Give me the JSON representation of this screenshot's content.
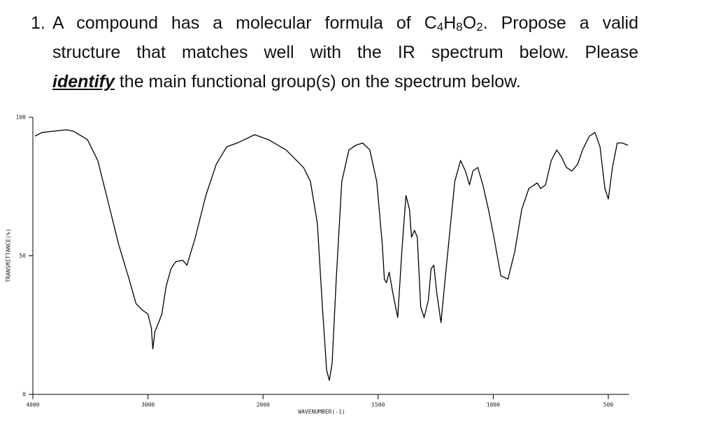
{
  "question": {
    "number": "1.",
    "text_before": "A compound has a molecular formula of",
    "formula": [
      {
        "symbol": "C",
        "count": 4
      },
      {
        "symbol": "H",
        "count": 8
      },
      {
        "symbol": "O",
        "count": 2
      }
    ],
    "text_after": ". Propose a valid",
    "line_2": "structure that matches well with the IR spectrum below. Please",
    "emphasis": "identify",
    "line_3_rest": "the main functional group(s) on the spectrum below."
  },
  "chart_data": {
    "type": "line",
    "x_label": "WAVENUMBER(-1)",
    "y_label": "TRANSMITTANCE(%)",
    "xlim": [
      4000,
      410
    ],
    "xticks": [
      4000,
      3000,
      2000,
      1500,
      1000,
      500
    ],
    "ylim": [
      0,
      100
    ],
    "yticks": [
      0,
      50,
      100
    ],
    "grid": false,
    "series": [
      {
        "color": "#000000",
        "x": [
          3982,
          3921,
          3709,
          3648,
          3527,
          3436,
          3345,
          3255,
          3164,
          3103,
          3042,
          3000,
          2970,
          2958,
          2939,
          2903,
          2879,
          2842,
          2800,
          2758,
          2697,
          2661,
          2588,
          2497,
          2406,
          2315,
          2224,
          2164,
          2073,
          1976,
          1900,
          1824,
          1794,
          1764,
          1742,
          1724,
          1712,
          1700,
          1682,
          1658,
          1627,
          1597,
          1567,
          1536,
          1506,
          1482,
          1473,
          1464,
          1452,
          1436,
          1415,
          1397,
          1379,
          1364,
          1355,
          1342,
          1330,
          1315,
          1300,
          1282,
          1270,
          1258,
          1245,
          1227,
          1209,
          1188,
          1167,
          1142,
          1121,
          1103,
          1088,
          1067,
          1045,
          1021,
          997,
          967,
          936,
          906,
          876,
          845,
          809,
          794,
          773,
          748,
          724,
          703,
          682,
          658,
          633,
          612,
          582,
          558,
          536,
          515,
          500,
          482,
          461,
          439,
          415
        ],
        "values": [
          93.2,
          94.5,
          95.5,
          95,
          92,
          84.4,
          69.3,
          54.2,
          41.6,
          32.7,
          30.2,
          29,
          23.9,
          16.4,
          22.7,
          26.4,
          29,
          39,
          45.3,
          47.9,
          48.4,
          46.6,
          56.7,
          71.8,
          83.1,
          89.4,
          90.7,
          91.9,
          93.7,
          91.9,
          88.2,
          81.9,
          76.8,
          61.7,
          31.5,
          8.8,
          5,
          11.3,
          41.6,
          76.8,
          88.2,
          89.9,
          90.7,
          88.2,
          76.8,
          54.2,
          41.6,
          40.3,
          44.1,
          36.5,
          27.7,
          51.6,
          71.8,
          66.8,
          56.7,
          59.2,
          56.7,
          31.5,
          27.7,
          34,
          45.3,
          46.6,
          36.5,
          25.9,
          41.6,
          59.2,
          76.8,
          84.4,
          80.6,
          75.6,
          80.6,
          81.9,
          75.6,
          66.8,
          56.7,
          42.8,
          41.6,
          51.6,
          66.8,
          74.3,
          76.3,
          74.3,
          75.6,
          84.4,
          88.2,
          85.6,
          81.9,
          80.6,
          83.1,
          88.2,
          93.2,
          94.5,
          89.4,
          74.3,
          70.5,
          81.9,
          90.7,
          90.7,
          89.9
        ]
      }
    ]
  }
}
